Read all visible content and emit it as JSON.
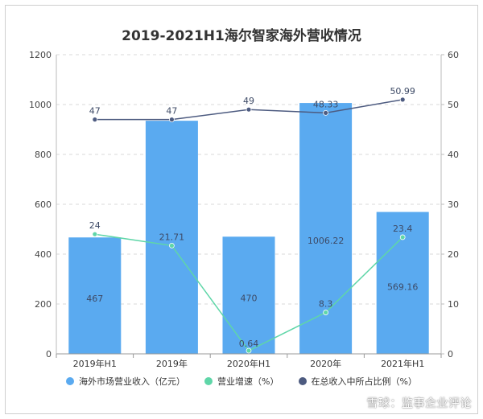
{
  "chart_data": {
    "type": "bar",
    "title": "2019-2021H1海尔智家海外营收情况",
    "categories": [
      "2019年H1",
      "2019年",
      "2020年H1",
      "2020年",
      "2021年H1"
    ],
    "series": [
      {
        "name": "海外市场营业收入（亿元）",
        "type": "bar",
        "axis": "left",
        "color": "#5aaaf0",
        "values": [
          467,
          935,
          470,
          1006.22,
          569.16
        ],
        "labels": [
          "467",
          "",
          "470",
          "1006.22",
          "569.16"
        ]
      },
      {
        "name": "营业增速（%）",
        "type": "line",
        "axis": "right",
        "color": "#5fd6a8",
        "values": [
          24,
          21.71,
          0.64,
          8.3,
          23.4
        ]
      },
      {
        "name": "在总收入中所占比例（%）",
        "type": "line",
        "axis": "right",
        "color": "#4d5b80",
        "values": [
          47,
          47,
          49,
          48.33,
          50.99
        ]
      }
    ],
    "ylim_left": [
      0,
      1200
    ],
    "yticks_left": [
      0,
      200,
      400,
      600,
      800,
      1000,
      1200
    ],
    "ylim_right": [
      0,
      60
    ],
    "yticks_right": [
      0,
      10,
      20,
      30,
      40,
      50,
      60
    ],
    "grid": true,
    "legend_position": "bottom"
  },
  "watermark": "雪球：监事企业评论"
}
